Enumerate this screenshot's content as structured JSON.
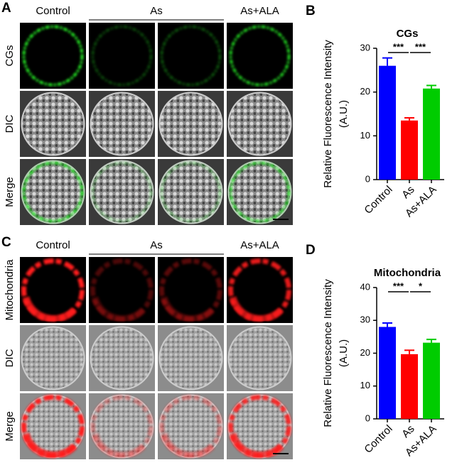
{
  "panels": [
    {
      "letter": "A",
      "columns": [
        "Control",
        "As",
        "As+ALA"
      ],
      "rows": [
        "CGs",
        "DIC",
        "Merge"
      ]
    },
    {
      "letter": "C",
      "columns": [
        "Control",
        "As",
        "As+ALA"
      ],
      "rows": [
        "Mitochondria",
        "DIC",
        "Merge"
      ]
    }
  ],
  "chart_data": [
    {
      "type": "bar",
      "letter": "B",
      "title": "CGs",
      "ylabel": [
        "Relative Fluorescence Intensity",
        "(A.U.)"
      ],
      "categories": [
        "Control",
        "As",
        "As+ALA"
      ],
      "values": [
        26,
        13.5,
        20.8
      ],
      "errors": [
        1.8,
        0.6,
        0.7
      ],
      "colors": [
        "#0000ff",
        "#ff0000",
        "#00cc00"
      ],
      "ylim": [
        0,
        30
      ],
      "yticks": [
        0,
        10,
        20,
        30
      ],
      "annotations": [
        "***",
        "***"
      ]
    },
    {
      "type": "bar",
      "letter": "D",
      "title": "Mitochondria",
      "ylabel": [
        "Relative Fluorescence Intensity",
        "(A.U.)"
      ],
      "categories": [
        "Control",
        "As",
        "As+ALA"
      ],
      "values": [
        28,
        19.7,
        23.2
      ],
      "errors": [
        1.2,
        1.2,
        1.0
      ],
      "colors": [
        "#0000ff",
        "#ff0000",
        "#00cc00"
      ],
      "ylim": [
        0,
        40
      ],
      "yticks": [
        0,
        10,
        20,
        30,
        40
      ],
      "annotations": [
        "***",
        "*"
      ]
    }
  ]
}
